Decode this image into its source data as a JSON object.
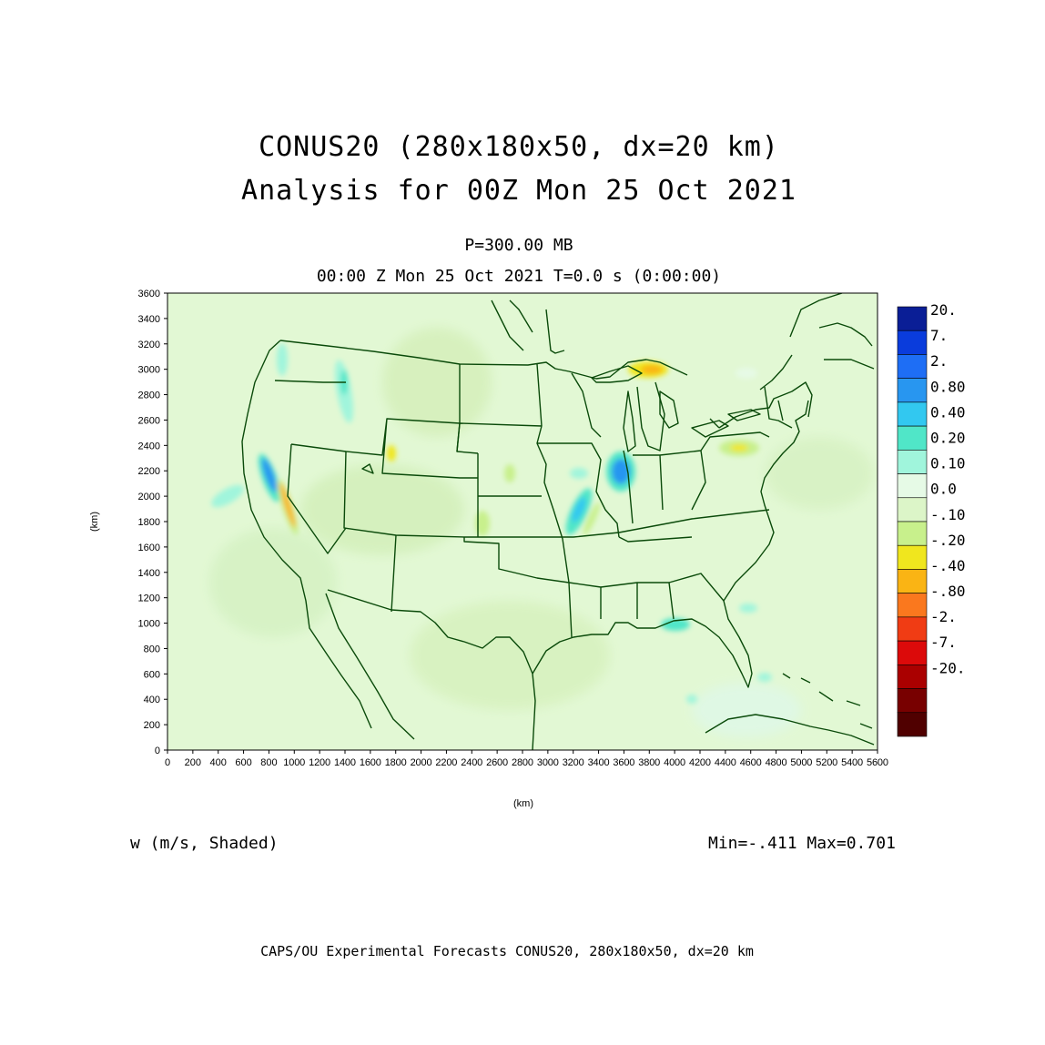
{
  "header": {
    "title_line1": "CONUS20 (280x180x50, dx=20 km)",
    "title_line2": "Analysis for 00Z Mon 25 Oct 2021",
    "level": "P=300.00 MB",
    "time": "00:00 Z Mon 25 Oct 2021   T=0.0 s (0:00:00)"
  },
  "axes": {
    "x_label": "(km)",
    "y_label": "(km)",
    "x_ticks": [
      "0",
      "200",
      "400",
      "600",
      "800",
      "1000",
      "1200",
      "1400",
      "1600",
      "1800",
      "2000",
      "2200",
      "2400",
      "2600",
      "2800",
      "3000",
      "3200",
      "3400",
      "3600",
      "3800",
      "4000",
      "4200",
      "4400",
      "4600",
      "4800",
      "5000",
      "5200",
      "5400",
      "5600"
    ],
    "y_ticks": [
      "0",
      "200",
      "400",
      "600",
      "800",
      "1000",
      "1200",
      "1400",
      "1600",
      "1800",
      "2000",
      "2200",
      "2400",
      "2600",
      "2800",
      "3000",
      "3200",
      "3400",
      "3600"
    ],
    "x_range": [
      0,
      5600
    ],
    "y_range": [
      0,
      3600
    ]
  },
  "legend": {
    "labels": [
      "20.",
      "7.",
      "2.",
      "0.80",
      "0.40",
      "0.20",
      "0.10",
      "0.0",
      "-.10",
      "-.20",
      "-.40",
      "-.80",
      "-2.",
      "-7.",
      "-20."
    ],
    "colors": [
      "#0a1e96",
      "#0a3cdc",
      "#1e6ef5",
      "#2896f0",
      "#32c8f0",
      "#50e6c8",
      "#a0f5dc",
      "#e6fae6",
      "#dcf5c8",
      "#c8f08c",
      "#f0e61e",
      "#fab414",
      "#fa781e",
      "#f03c14",
      "#dc0a0a",
      "#aa0000",
      "#780000",
      "#500000"
    ]
  },
  "footer": {
    "variable": "w (m/s, Shaded)",
    "minmax": "Min=-.411 Max=0.701",
    "credit": "CAPS/OU Experimental Forecasts  CONUS20, 280x180x50, dx=20 km"
  },
  "map": {
    "background_color": "#e2f8d4",
    "border_color": "#0a4a0a"
  }
}
